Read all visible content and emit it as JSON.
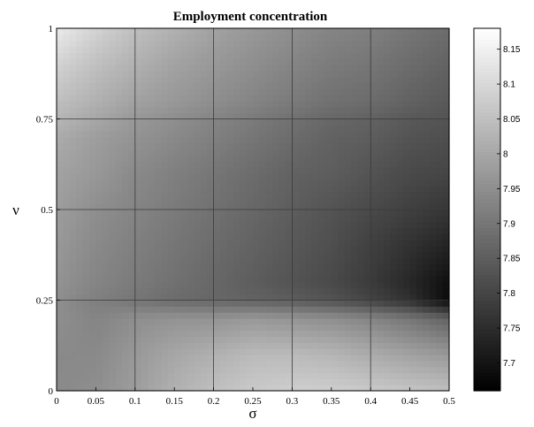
{
  "chart_data": {
    "type": "heatmap",
    "title": "Employment concentration",
    "xlabel": "σ",
    "ylabel": "ν",
    "xlim": [
      0,
      0.5
    ],
    "ylim": [
      0,
      1
    ],
    "x_ticks": [
      "0",
      "0.05",
      "0.1",
      "0.15",
      "0.2",
      "0.25",
      "0.3",
      "0.35",
      "0.4",
      "0.45",
      "0.5"
    ],
    "y_ticks": [
      "0",
      "0.25",
      "0.5",
      "0.75",
      "1"
    ],
    "grid": true,
    "colormap": "gray",
    "colorbar": {
      "range": [
        7.66,
        8.18
      ],
      "ticks": [
        "7.7",
        "7.75",
        "7.8",
        "7.85",
        "7.9",
        "7.95",
        "8",
        "8.05",
        "8.1",
        "8.15"
      ]
    },
    "x": [
      0,
      0.05,
      0.1,
      0.15,
      0.2,
      0.25,
      0.3,
      0.35,
      0.4,
      0.45,
      0.5
    ],
    "y": [
      0,
      0.1,
      0.2,
      0.25,
      0.3,
      0.4,
      0.5,
      0.6,
      0.7,
      0.75,
      0.8,
      0.9,
      1
    ],
    "z": [
      [
        7.94,
        7.95,
        7.98,
        8.02,
        8.05,
        8.07,
        8.08,
        8.08,
        8.07,
        8.06,
        8.05
      ],
      [
        7.94,
        7.94,
        7.97,
        8.0,
        8.02,
        8.04,
        8.04,
        8.03,
        8.01,
        7.99,
        7.97
      ],
      [
        7.95,
        7.93,
        7.95,
        7.96,
        7.96,
        7.97,
        7.96,
        7.95,
        7.93,
        7.9,
        7.86
      ],
      [
        7.95,
        7.92,
        7.9,
        7.88,
        7.87,
        7.86,
        7.85,
        7.83,
        7.8,
        7.76,
        7.68
      ],
      [
        7.96,
        7.93,
        7.91,
        7.89,
        7.87,
        7.85,
        7.83,
        7.81,
        7.78,
        7.74,
        7.69
      ],
      [
        7.97,
        7.94,
        7.92,
        7.9,
        7.88,
        7.86,
        7.84,
        7.82,
        7.79,
        7.76,
        7.73
      ],
      [
        7.98,
        7.95,
        7.93,
        7.91,
        7.89,
        7.87,
        7.85,
        7.83,
        7.81,
        7.79,
        7.77
      ],
      [
        7.99,
        7.97,
        7.94,
        7.92,
        7.9,
        7.88,
        7.86,
        7.85,
        7.83,
        7.81,
        7.8
      ],
      [
        8.01,
        7.98,
        7.96,
        7.94,
        7.92,
        7.9,
        7.88,
        7.86,
        7.85,
        7.83,
        7.82
      ],
      [
        8.03,
        8.0,
        7.97,
        7.95,
        7.93,
        7.91,
        7.89,
        7.87,
        7.86,
        7.84,
        7.83
      ],
      [
        8.05,
        8.02,
        7.99,
        7.97,
        7.95,
        7.93,
        7.91,
        7.89,
        7.88,
        7.86,
        7.84
      ],
      [
        8.09,
        8.05,
        8.02,
        7.99,
        7.97,
        7.95,
        7.93,
        7.91,
        7.9,
        7.88,
        7.86
      ],
      [
        8.14,
        8.09,
        8.05,
        8.02,
        7.99,
        7.97,
        7.95,
        7.93,
        7.92,
        7.9,
        7.88
      ]
    ]
  }
}
